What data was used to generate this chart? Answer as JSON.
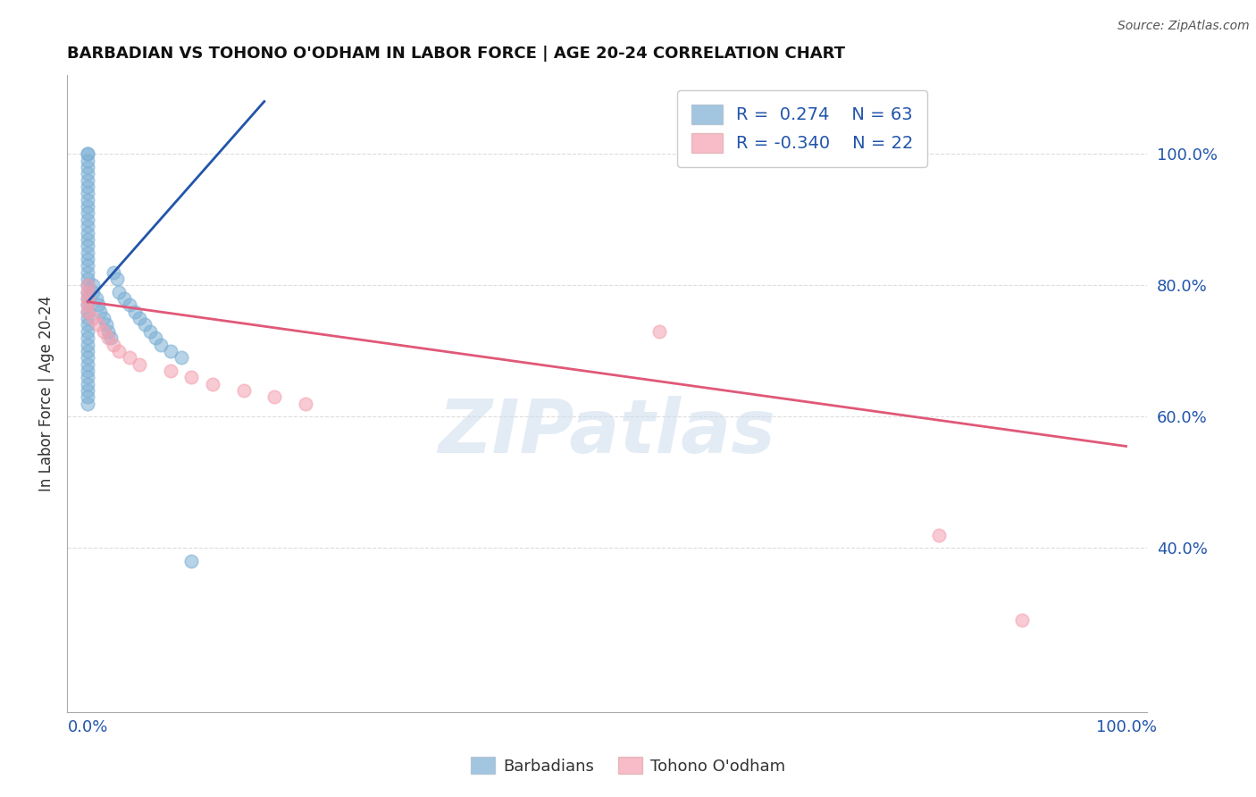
{
  "title": "BARBADIAN VS TOHONO O'ODHAM IN LABOR FORCE | AGE 20-24 CORRELATION CHART",
  "source_text": "Source: ZipAtlas.com",
  "ylabel": "In Labor Force | Age 20-24",
  "xlim": [
    -0.02,
    1.02
  ],
  "ylim": [
    0.15,
    1.12
  ],
  "x_ticks": [
    0.0,
    1.0
  ],
  "x_tick_labels": [
    "0.0%",
    "100.0%"
  ],
  "y_ticks": [
    0.4,
    0.6,
    0.8,
    1.0
  ],
  "y_tick_labels": [
    "40.0%",
    "60.0%",
    "80.0%",
    "100.0%"
  ],
  "grid_color": "#dddddd",
  "background_color": "#ffffff",
  "blue_color": "#7BAFD4",
  "pink_color": "#F4A0B0",
  "blue_line_color": "#2255AA",
  "pink_line_color": "#E05878",
  "blue_R": 0.274,
  "blue_N": 63,
  "pink_R": -0.34,
  "pink_N": 22,
  "watermark": "ZIPatlas",
  "barbadian_x": [
    0.0,
    0.0,
    0.0,
    0.0,
    0.0,
    0.0,
    0.0,
    0.0,
    0.0,
    0.0,
    0.0,
    0.0,
    0.0,
    0.0,
    0.0,
    0.0,
    0.0,
    0.0,
    0.0,
    0.0,
    0.0,
    0.0,
    0.0,
    0.0,
    0.0,
    0.0,
    0.0,
    0.0,
    0.0,
    0.0,
    0.0,
    0.0,
    0.0,
    0.0,
    0.0,
    0.0,
    0.0,
    0.0,
    0.0,
    0.0,
    0.005,
    0.005,
    0.008,
    0.01,
    0.012,
    0.015,
    0.018,
    0.02,
    0.022,
    0.025,
    0.028,
    0.03,
    0.035,
    0.04,
    0.045,
    0.05,
    0.055,
    0.06,
    0.065,
    0.07,
    0.08,
    0.09,
    0.1
  ],
  "barbadian_y": [
    1.0,
    1.0,
    0.99,
    0.98,
    0.97,
    0.96,
    0.95,
    0.94,
    0.93,
    0.92,
    0.91,
    0.9,
    0.89,
    0.88,
    0.87,
    0.86,
    0.85,
    0.84,
    0.83,
    0.82,
    0.81,
    0.8,
    0.79,
    0.78,
    0.77,
    0.76,
    0.75,
    0.74,
    0.73,
    0.72,
    0.71,
    0.7,
    0.69,
    0.68,
    0.67,
    0.66,
    0.65,
    0.64,
    0.63,
    0.62,
    0.8,
    0.79,
    0.78,
    0.77,
    0.76,
    0.75,
    0.74,
    0.73,
    0.72,
    0.82,
    0.81,
    0.79,
    0.78,
    0.77,
    0.76,
    0.75,
    0.74,
    0.73,
    0.72,
    0.71,
    0.7,
    0.69,
    0.38
  ],
  "tohono_x": [
    0.0,
    0.0,
    0.0,
    0.0,
    0.0,
    0.005,
    0.01,
    0.015,
    0.02,
    0.025,
    0.03,
    0.04,
    0.05,
    0.08,
    0.1,
    0.12,
    0.15,
    0.18,
    0.21,
    0.55,
    0.82,
    0.9
  ],
  "tohono_y": [
    0.8,
    0.79,
    0.78,
    0.77,
    0.76,
    0.75,
    0.74,
    0.73,
    0.72,
    0.71,
    0.7,
    0.69,
    0.68,
    0.67,
    0.66,
    0.65,
    0.64,
    0.63,
    0.62,
    0.73,
    0.42,
    0.29
  ],
  "blue_trend_x0": 0.0,
  "blue_trend_y0": 0.775,
  "blue_trend_x1": 0.17,
  "blue_trend_y1": 1.08,
  "pink_trend_x0": 0.0,
  "pink_trend_y0": 0.775,
  "pink_trend_x1": 1.0,
  "pink_trend_y1": 0.555
}
